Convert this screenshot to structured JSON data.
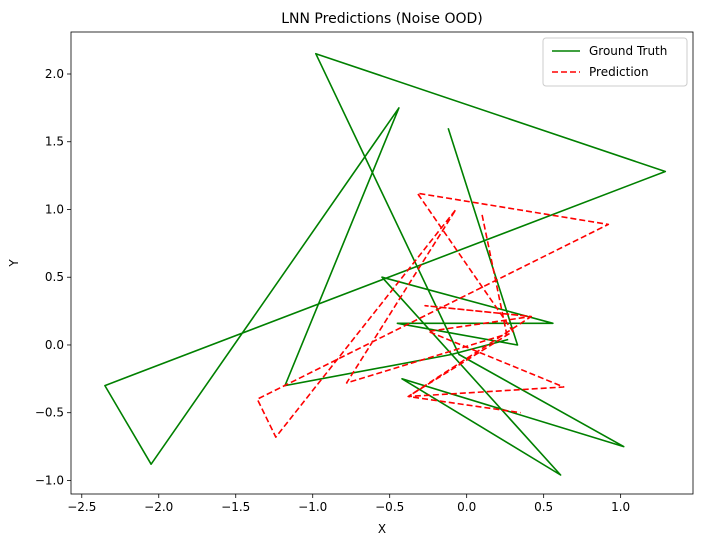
{
  "chart_data": {
    "type": "line",
    "title": "LNN Predictions (Noise OOD)",
    "xlabel": "X",
    "ylabel": "Y",
    "xlim": [
      -2.57,
      1.47
    ],
    "ylim": [
      -1.1,
      2.31
    ],
    "xticks": [
      -2.5,
      -2.0,
      -1.5,
      -1.0,
      -0.5,
      0.0,
      0.5,
      1.0
    ],
    "xtick_labels": [
      "−2.5",
      "−2.0",
      "−1.5",
      "−1.0",
      "−0.5",
      "0.0",
      "0.5",
      "1.0"
    ],
    "yticks": [
      -1.0,
      -0.5,
      0.0,
      0.5,
      1.0,
      1.5,
      2.0
    ],
    "ytick_labels": [
      "−1.0",
      "−0.5",
      "0.0",
      "0.5",
      "1.0",
      "1.5",
      "2.0"
    ],
    "grid": false,
    "legend_position": "top-right",
    "series": [
      {
        "name": "Ground Truth",
        "color": "#008000",
        "style": "solid",
        "x": [
          -0.12,
          0.33,
          -0.45,
          0.56,
          -0.55,
          0.61,
          -0.42,
          1.02,
          -0.05,
          -0.98,
          1.29,
          -2.35,
          -2.05,
          -0.44,
          -1.18,
          -0.1,
          0.27
        ],
        "y": [
          1.6,
          0.0,
          0.16,
          0.16,
          0.5,
          -0.96,
          -0.25,
          -0.75,
          -0.07,
          2.15,
          1.28,
          -0.3,
          -0.88,
          1.75,
          -0.3,
          -0.07,
          0.04
        ]
      },
      {
        "name": "Prediction",
        "color": "#ff0000",
        "style": "dashed",
        "x": [
          0.1,
          0.26,
          -0.78,
          -0.07,
          -1.24,
          -1.36,
          0.92,
          -0.32,
          0.3,
          -0.38,
          0.63,
          -0.25,
          0.42,
          -0.27,
          0.42,
          -0.38,
          0.35
        ],
        "y": [
          0.96,
          0.08,
          -0.28,
          1.0,
          -0.68,
          -0.4,
          0.89,
          1.12,
          0.1,
          -0.38,
          -0.31,
          0.1,
          0.21,
          0.29,
          0.21,
          -0.38,
          -0.5
        ]
      }
    ]
  }
}
